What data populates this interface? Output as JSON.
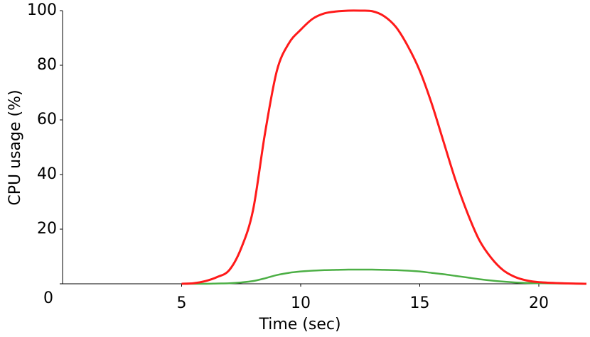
{
  "chart_data": {
    "type": "line",
    "xlabel": "Time (sec)",
    "ylabel": "CPU usage (%)",
    "x": [
      5,
      5.5,
      6,
      6.5,
      7,
      7.5,
      8,
      8.5,
      9,
      9.5,
      10,
      10.5,
      11,
      11.5,
      12,
      12.5,
      13,
      13.5,
      14,
      14.5,
      15,
      15.5,
      16,
      16.5,
      17,
      17.5,
      18,
      18.5,
      19,
      19.5,
      20,
      21,
      22
    ],
    "series": [
      {
        "color": "#ff1a1a",
        "values": [
          0,
          0.2,
          1,
          2.5,
          5,
          13,
          27,
          55,
          78,
          88,
          93,
          97,
          99,
          99.7,
          100,
          100,
          99.8,
          98,
          94,
          87,
          78,
          66,
          52,
          38,
          26,
          16,
          9.5,
          5,
          2.5,
          1.2,
          0.6,
          0.2,
          0
        ]
      },
      {
        "color": "#4caf45",
        "values": [
          0,
          0,
          0,
          0.1,
          0.2,
          0.5,
          1,
          2,
          3.2,
          4,
          4.5,
          4.8,
          5,
          5.1,
          5.2,
          5.2,
          5.2,
          5.1,
          5,
          4.8,
          4.5,
          4,
          3.5,
          2.9,
          2.3,
          1.7,
          1.2,
          0.8,
          0.5,
          0.3,
          0.2,
          0.1,
          0
        ]
      }
    ],
    "xlim": [
      0,
      22
    ],
    "ylim": [
      0,
      100
    ],
    "xticks": [
      5,
      10,
      15,
      20
    ],
    "yticks": [
      0,
      20,
      40,
      60,
      80,
      100
    ]
  }
}
